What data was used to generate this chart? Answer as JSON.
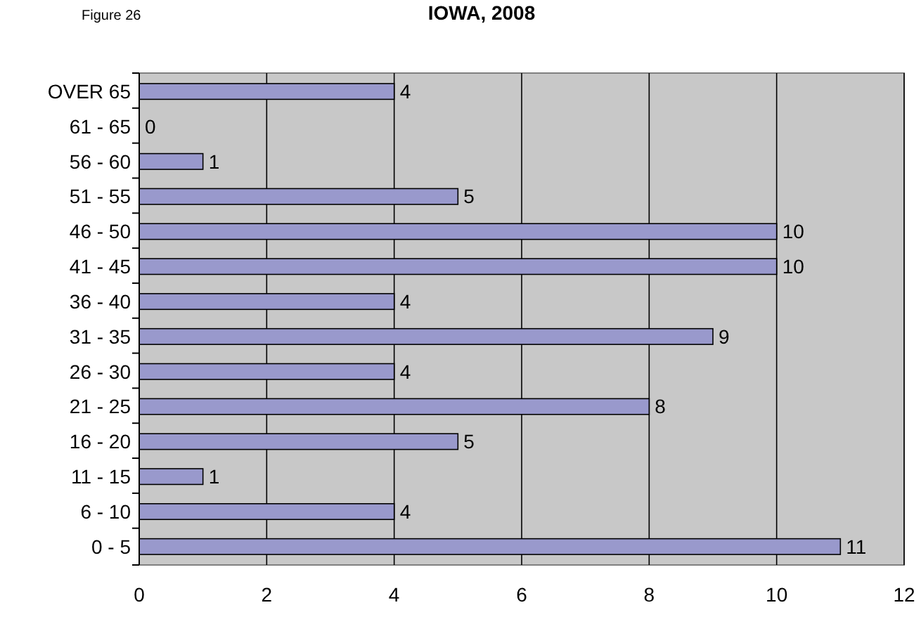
{
  "chart_data": {
    "type": "bar",
    "orientation": "horizontal",
    "title": "IOWA, 2008",
    "annotations": [
      "Figure 26"
    ],
    "categories": [
      "OVER 65",
      "61 - 65",
      "56 - 60",
      "51 - 55",
      "46 - 50",
      "41 - 45",
      "36 - 40",
      "31 - 35",
      "26 - 30",
      "21 - 25",
      "16 - 20",
      "11 - 15",
      "6 - 10",
      "0 - 5"
    ],
    "values": [
      4,
      0,
      1,
      5,
      10,
      10,
      4,
      9,
      4,
      8,
      5,
      1,
      4,
      11
    ],
    "color": "#9999cc",
    "xlim": [
      0,
      12
    ],
    "xticks": [
      0,
      2,
      4,
      6,
      8,
      10,
      12
    ],
    "grid": "x",
    "data_labels": true
  }
}
